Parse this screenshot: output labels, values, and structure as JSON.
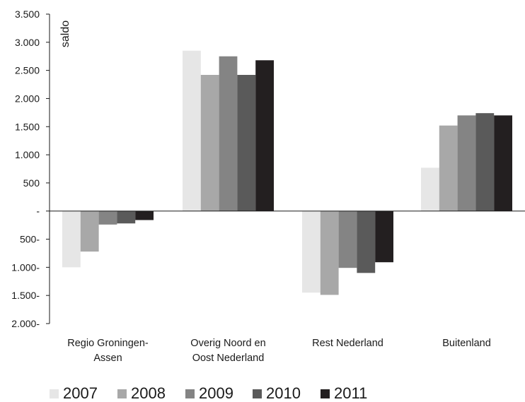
{
  "chart_data": {
    "type": "bar",
    "ylabel": "saldo",
    "ylim": [
      -2000,
      3500
    ],
    "yticks": [
      {
        "value": 3500,
        "label": "3.500"
      },
      {
        "value": 3000,
        "label": "3.000"
      },
      {
        "value": 2500,
        "label": "2.500"
      },
      {
        "value": 2000,
        "label": "2.000"
      },
      {
        "value": 1500,
        "label": "1.500"
      },
      {
        "value": 1000,
        "label": "1.000"
      },
      {
        "value": 500,
        "label": "500"
      },
      {
        "value": 0,
        "label": "-"
      },
      {
        "value": -500,
        "label": "500-"
      },
      {
        "value": -1000,
        "label": "1.000-"
      },
      {
        "value": -1500,
        "label": "1.500-"
      },
      {
        "value": -2000,
        "label": "2.000-"
      }
    ],
    "categories": [
      [
        "Regio Groningen-",
        "Assen"
      ],
      [
        "Overig Noord en",
        "Oost Nederland"
      ],
      [
        "Rest Nederland"
      ],
      [
        "Buitenland"
      ]
    ],
    "series": [
      {
        "name": "2007",
        "color": "#e6e6e6",
        "values": [
          -1000,
          2850,
          -1450,
          770
        ]
      },
      {
        "name": "2008",
        "color": "#a8a8a8",
        "values": [
          -720,
          2420,
          -1490,
          1520
        ]
      },
      {
        "name": "2009",
        "color": "#848484",
        "values": [
          -240,
          2750,
          -1010,
          1700
        ]
      },
      {
        "name": "2010",
        "color": "#5a5a5a",
        "values": [
          -220,
          2420,
          -1100,
          1740
        ]
      },
      {
        "name": "2011",
        "color": "#231f20",
        "values": [
          -160,
          2680,
          -910,
          1700
        ]
      }
    ],
    "grid": false,
    "legend_position": "bottom-left"
  }
}
